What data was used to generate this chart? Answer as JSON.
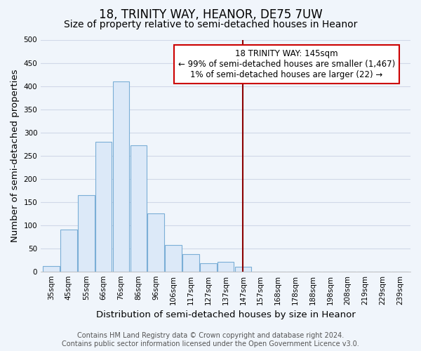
{
  "title": "18, TRINITY WAY, HEANOR, DE75 7UW",
  "subtitle": "Size of property relative to semi-detached houses in Heanor",
  "xlabel": "Distribution of semi-detached houses by size in Heanor",
  "ylabel": "Number of semi-detached properties",
  "bin_labels": [
    "35sqm",
    "45sqm",
    "55sqm",
    "66sqm",
    "76sqm",
    "86sqm",
    "96sqm",
    "106sqm",
    "117sqm",
    "127sqm",
    "137sqm",
    "147sqm",
    "157sqm",
    "168sqm",
    "178sqm",
    "188sqm",
    "198sqm",
    "208sqm",
    "219sqm",
    "229sqm",
    "239sqm"
  ],
  "bar_heights": [
    12,
    90,
    165,
    280,
    410,
    272,
    125,
    57,
    38,
    18,
    20,
    10,
    0,
    0,
    0,
    0,
    0,
    0,
    0,
    0,
    0
  ],
  "bar_color": "#dce9f8",
  "bar_edge_color": "#7aaed6",
  "vline_color": "#8b0000",
  "annotation_line1": "18 TRINITY WAY: 145sqm",
  "annotation_line2": "← 99% of semi-detached houses are smaller (1,467)",
  "annotation_line3": "1% of semi-detached houses are larger (22) →",
  "annotation_box_color": "white",
  "annotation_box_edge_color": "#cc0000",
  "ylim": [
    0,
    500
  ],
  "yticks": [
    0,
    50,
    100,
    150,
    200,
    250,
    300,
    350,
    400,
    450,
    500
  ],
  "plot_bg_color": "#f0f5fb",
  "fig_bg_color": "#f0f5fb",
  "grid_color": "#d0d8e8",
  "title_fontsize": 12,
  "subtitle_fontsize": 10,
  "axis_label_fontsize": 9.5,
  "tick_fontsize": 7.5,
  "annotation_fontsize": 8.5,
  "footer_fontsize": 7,
  "footer_line1": "Contains HM Land Registry data © Crown copyright and database right 2024.",
  "footer_line2": "Contains public sector information licensed under the Open Government Licence v3.0."
}
